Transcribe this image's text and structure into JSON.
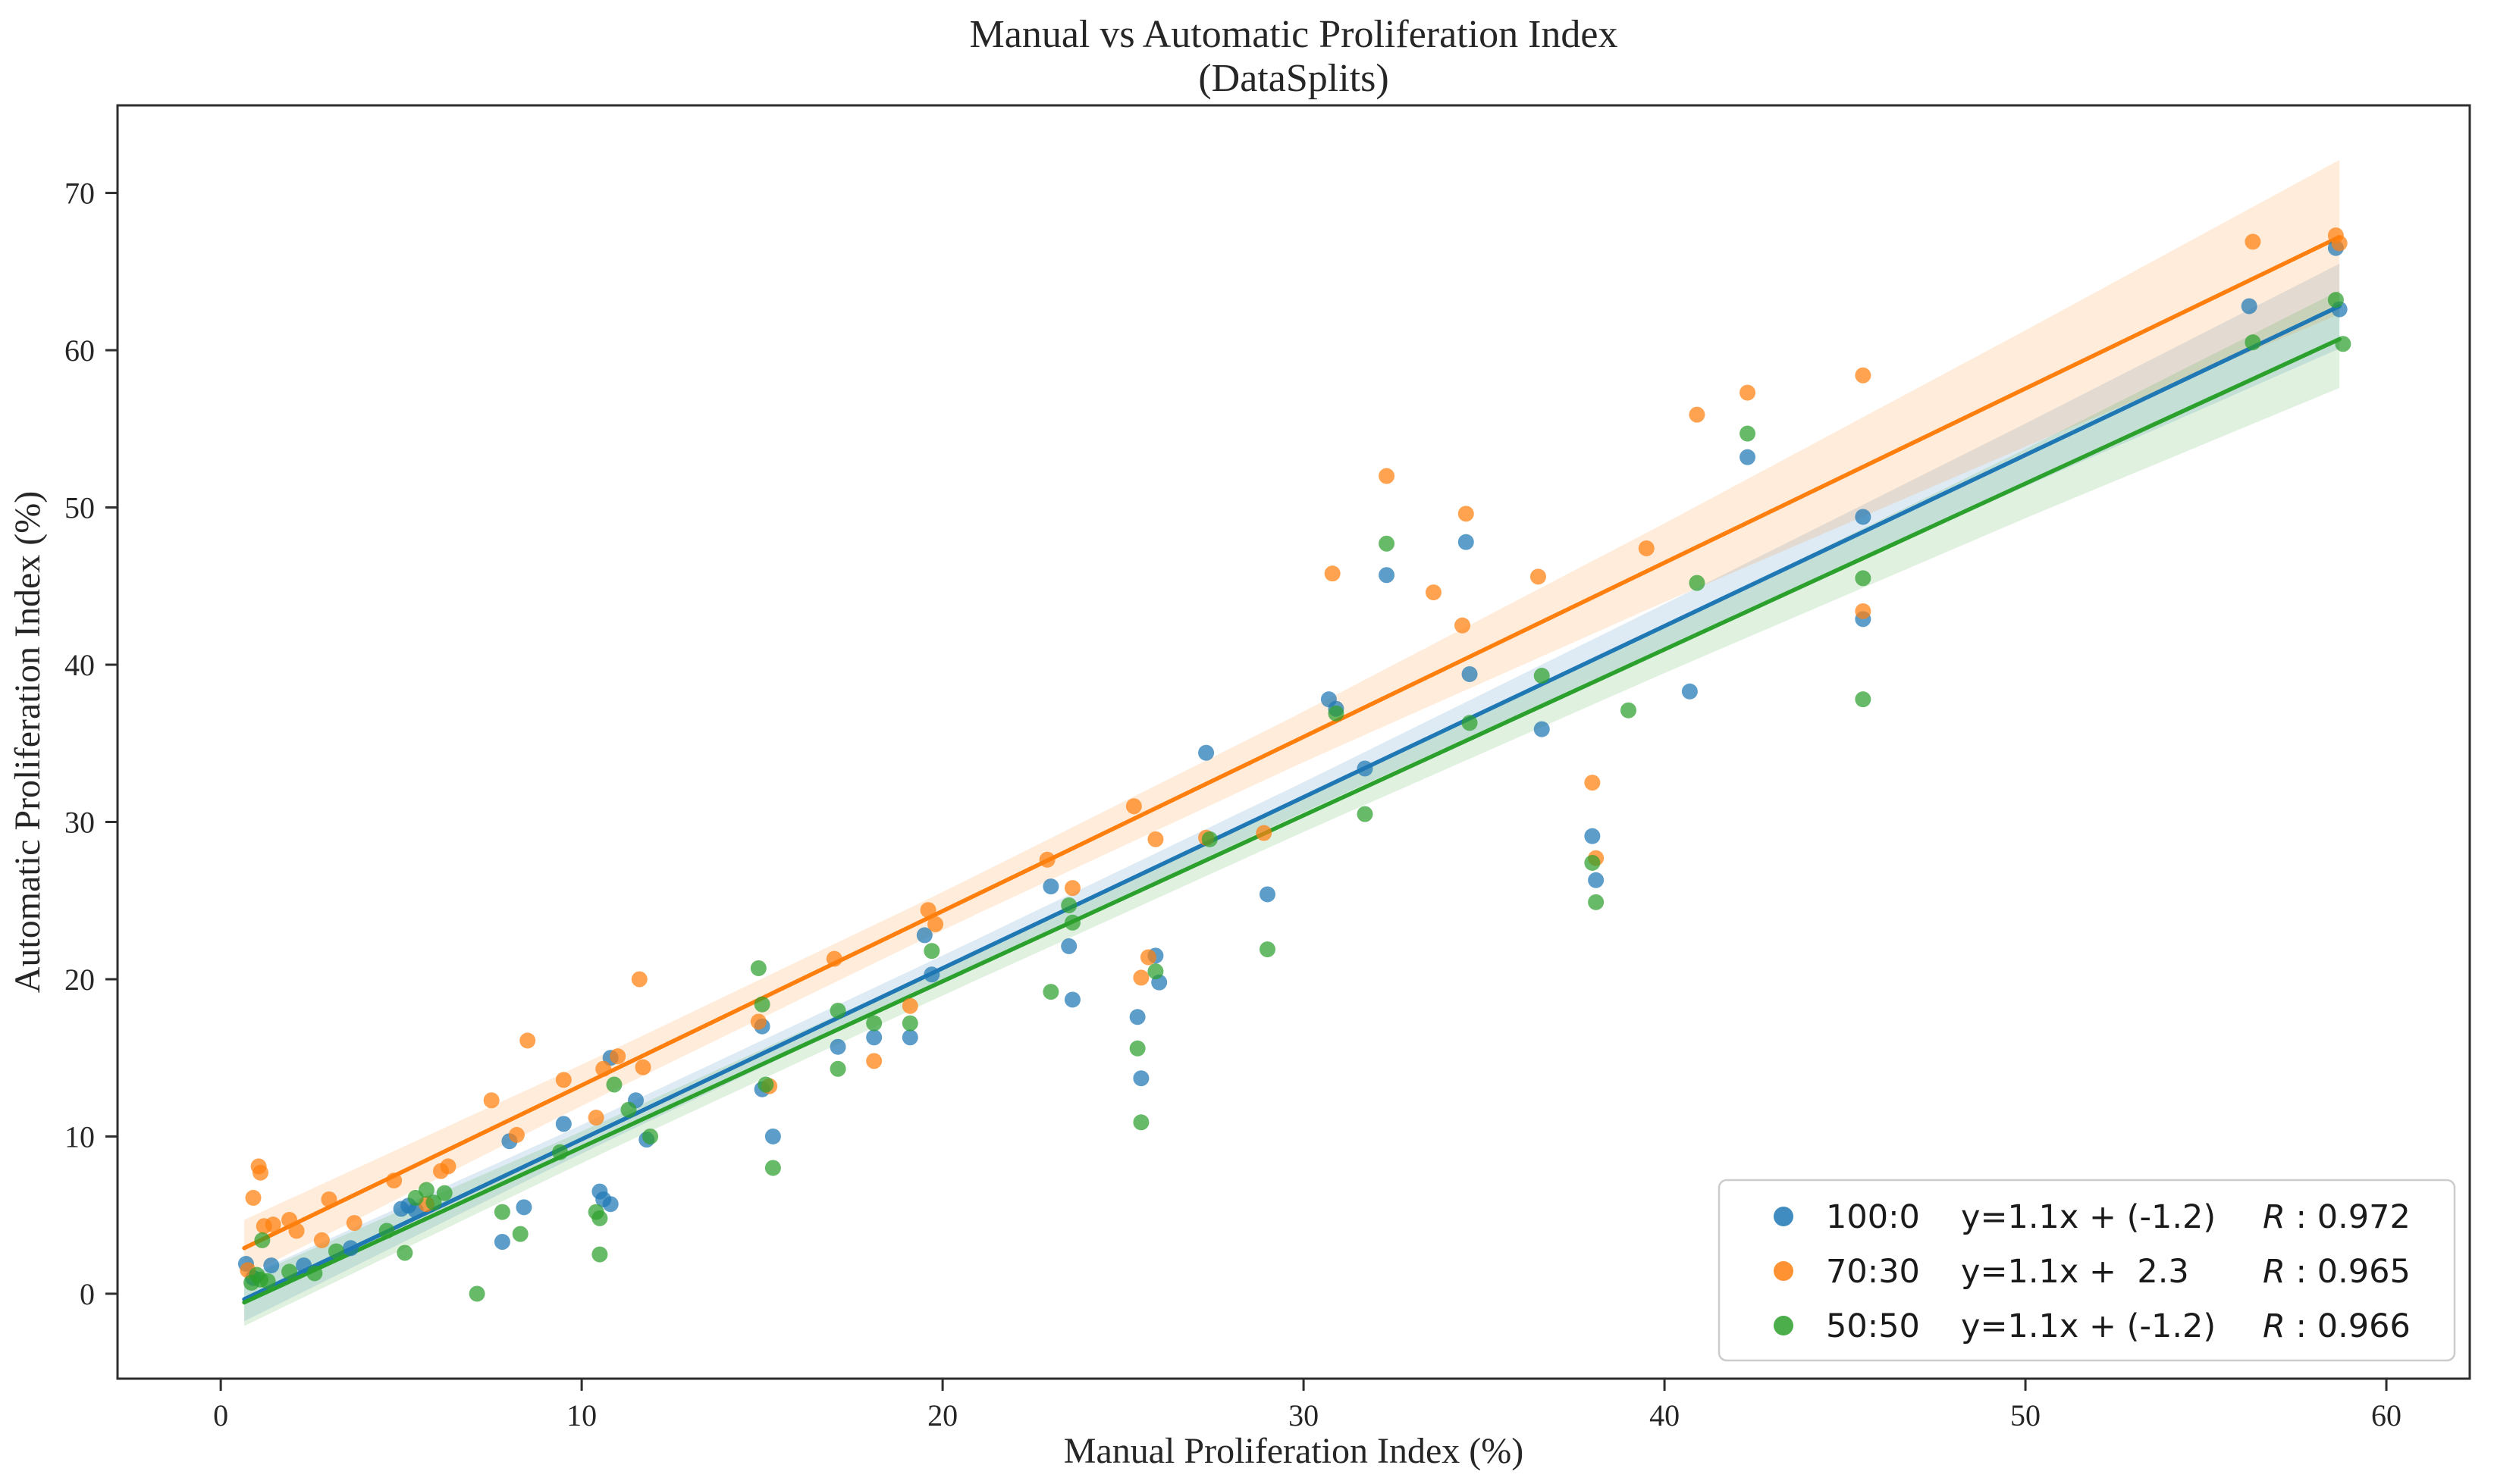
{
  "chart_data": {
    "type": "scatter",
    "title": "Manual vs Automatic Proliferation Index",
    "subtitle": "(DataSplits)",
    "xlabel": "Manual Proliferation Index (%)",
    "ylabel": "Automatic Proliferation Index (%)",
    "xlim": [
      -2.86,
      62.31
    ],
    "ylim": [
      -5.4,
      75.57
    ],
    "xticks": [
      0,
      10,
      20,
      30,
      40,
      50,
      60
    ],
    "yticks": [
      0,
      10,
      20,
      30,
      40,
      50,
      60,
      70
    ],
    "grid": false,
    "legend_position": "lower right",
    "band_x": [
      0.65,
      10,
      20,
      30,
      40,
      50,
      58.7
    ],
    "series": [
      {
        "name": "100:0",
        "color": "#1f77b4",
        "equation": "y=1.1x + (-1.2)",
        "r_prefix": "R",
        "r_separator": " : ",
        "r_value": "0.972",
        "line": {
          "x1": 0.65,
          "y1": -0.35,
          "x2": 58.7,
          "y2": 62.8
        },
        "band_h": [
          1.4,
          0.9,
          0.8,
          0.95,
          1.4,
          2.0,
          2.7
        ],
        "points": [
          [
            0.7,
            1.9
          ],
          [
            0.9,
            1.0
          ],
          [
            1.4,
            1.8
          ],
          [
            2.3,
            1.8
          ],
          [
            3.6,
            2.9
          ],
          [
            5.0,
            5.4
          ],
          [
            5.2,
            5.6
          ],
          [
            5.4,
            5.3
          ],
          [
            7.8,
            3.3
          ],
          [
            8.0,
            9.7
          ],
          [
            8.4,
            5.5
          ],
          [
            9.5,
            10.8
          ],
          [
            10.5,
            6.5
          ],
          [
            10.6,
            6.0
          ],
          [
            10.8,
            5.7
          ],
          [
            10.8,
            15.0
          ],
          [
            11.5,
            12.3
          ],
          [
            11.8,
            9.8
          ],
          [
            15.0,
            17.0
          ],
          [
            15.0,
            13.0
          ],
          [
            15.3,
            10.0
          ],
          [
            17.1,
            15.7
          ],
          [
            18.1,
            16.3
          ],
          [
            19.1,
            16.3
          ],
          [
            19.5,
            22.8
          ],
          [
            19.7,
            20.3
          ],
          [
            23.0,
            25.9
          ],
          [
            23.5,
            22.1
          ],
          [
            23.6,
            18.7
          ],
          [
            25.4,
            17.6
          ],
          [
            25.5,
            13.7
          ],
          [
            25.9,
            21.5
          ],
          [
            26.0,
            19.8
          ],
          [
            27.3,
            34.4
          ],
          [
            29.0,
            25.4
          ],
          [
            30.7,
            37.8
          ],
          [
            30.9,
            37.2
          ],
          [
            31.7,
            33.4
          ],
          [
            32.3,
            45.7
          ],
          [
            34.5,
            47.8
          ],
          [
            34.6,
            39.4
          ],
          [
            36.6,
            35.9
          ],
          [
            38.0,
            29.1
          ],
          [
            38.1,
            26.3
          ],
          [
            40.7,
            38.3
          ],
          [
            42.3,
            53.2
          ],
          [
            45.5,
            49.4
          ],
          [
            45.5,
            42.9
          ],
          [
            56.2,
            62.8
          ],
          [
            58.6,
            66.5
          ],
          [
            58.7,
            62.6
          ]
        ]
      },
      {
        "name": "70:30",
        "color": "#ff7f0e",
        "equation": "y=1.1x +  2.3",
        "r_prefix": "R",
        "r_separator": " : ",
        "r_value": "0.965",
        "line": {
          "x1": 0.65,
          "y1": 2.9,
          "x2": 58.7,
          "y2": 67.2
        },
        "band_h": [
          1.8,
          1.3,
          1.2,
          1.6,
          2.5,
          3.7,
          4.9
        ],
        "points": [
          [
            0.75,
            1.5
          ],
          [
            0.9,
            6.1
          ],
          [
            1.05,
            8.1
          ],
          [
            1.1,
            7.7
          ],
          [
            1.2,
            4.3
          ],
          [
            1.45,
            4.4
          ],
          [
            1.9,
            4.7
          ],
          [
            2.1,
            4.0
          ],
          [
            2.8,
            3.4
          ],
          [
            3.0,
            6.0
          ],
          [
            3.7,
            4.5
          ],
          [
            4.8,
            7.2
          ],
          [
            5.7,
            5.7
          ],
          [
            6.1,
            7.8
          ],
          [
            6.3,
            8.1
          ],
          [
            7.5,
            12.3
          ],
          [
            8.2,
            10.1
          ],
          [
            8.5,
            16.1
          ],
          [
            9.5,
            13.6
          ],
          [
            10.4,
            11.2
          ],
          [
            10.6,
            14.3
          ],
          [
            11.0,
            15.1
          ],
          [
            11.6,
            20.0
          ],
          [
            11.7,
            14.4
          ],
          [
            14.9,
            17.3
          ],
          [
            15.2,
            13.2
          ],
          [
            17.0,
            21.3
          ],
          [
            18.1,
            14.8
          ],
          [
            19.1,
            18.3
          ],
          [
            19.6,
            24.4
          ],
          [
            19.8,
            23.5
          ],
          [
            22.9,
            27.6
          ],
          [
            23.6,
            25.8
          ],
          [
            25.3,
            31.0
          ],
          [
            25.5,
            20.1
          ],
          [
            25.7,
            21.4
          ],
          [
            25.9,
            28.9
          ],
          [
            27.3,
            29.0
          ],
          [
            28.9,
            29.3
          ],
          [
            30.8,
            45.8
          ],
          [
            32.3,
            52.0
          ],
          [
            33.6,
            44.6
          ],
          [
            34.4,
            42.5
          ],
          [
            34.5,
            49.6
          ],
          [
            36.5,
            45.6
          ],
          [
            38.0,
            32.5
          ],
          [
            38.1,
            27.7
          ],
          [
            39.5,
            47.4
          ],
          [
            40.9,
            55.9
          ],
          [
            42.3,
            57.3
          ],
          [
            45.5,
            58.4
          ],
          [
            45.5,
            43.4
          ],
          [
            56.3,
            66.9
          ],
          [
            58.6,
            67.3
          ],
          [
            58.7,
            66.8
          ]
        ]
      },
      {
        "name": "50:50",
        "color": "#2ca02c",
        "equation": "y=1.1x + (-1.2)",
        "r_prefix": "R",
        "r_separator": " : ",
        "r_value": "0.966",
        "line": {
          "x1": 0.65,
          "y1": -0.55,
          "x2": 58.7,
          "y2": 60.7
        },
        "band_h": [
          1.5,
          1.0,
          0.9,
          1.05,
          1.5,
          2.2,
          3.1
        ],
        "points": [
          [
            0.85,
            0.7
          ],
          [
            1.0,
            1.2
          ],
          [
            1.1,
            0.9
          ],
          [
            1.3,
            0.8
          ],
          [
            1.15,
            3.4
          ],
          [
            1.9,
            1.4
          ],
          [
            2.6,
            1.3
          ],
          [
            3.2,
            2.7
          ],
          [
            4.6,
            4.0
          ],
          [
            5.1,
            2.6
          ],
          [
            5.4,
            6.1
          ],
          [
            5.7,
            6.6
          ],
          [
            5.9,
            5.8
          ],
          [
            6.2,
            6.4
          ],
          [
            7.1,
            0.0
          ],
          [
            7.8,
            5.2
          ],
          [
            8.3,
            3.8
          ],
          [
            9.4,
            9.0
          ],
          [
            10.4,
            5.2
          ],
          [
            10.5,
            4.8
          ],
          [
            10.5,
            2.5
          ],
          [
            10.9,
            13.3
          ],
          [
            11.3,
            11.7
          ],
          [
            11.9,
            10.0
          ],
          [
            14.9,
            20.7
          ],
          [
            15.0,
            18.4
          ],
          [
            15.1,
            13.3
          ],
          [
            15.3,
            8.0
          ],
          [
            17.1,
            18.0
          ],
          [
            17.1,
            14.3
          ],
          [
            18.1,
            17.2
          ],
          [
            19.1,
            17.2
          ],
          [
            19.7,
            21.8
          ],
          [
            23.0,
            19.2
          ],
          [
            23.5,
            24.7
          ],
          [
            23.6,
            23.6
          ],
          [
            25.4,
            15.6
          ],
          [
            25.5,
            10.9
          ],
          [
            25.9,
            20.5
          ],
          [
            27.4,
            28.9
          ],
          [
            29.0,
            21.9
          ],
          [
            30.9,
            36.9
          ],
          [
            31.7,
            30.5
          ],
          [
            32.3,
            47.7
          ],
          [
            34.6,
            36.3
          ],
          [
            36.6,
            39.3
          ],
          [
            38.0,
            27.4
          ],
          [
            38.1,
            24.9
          ],
          [
            39.0,
            37.1
          ],
          [
            40.9,
            45.2
          ],
          [
            42.3,
            54.7
          ],
          [
            45.5,
            45.5
          ],
          [
            45.5,
            37.8
          ],
          [
            56.3,
            60.5
          ],
          [
            58.6,
            63.2
          ],
          [
            58.8,
            60.4
          ]
        ]
      }
    ]
  }
}
